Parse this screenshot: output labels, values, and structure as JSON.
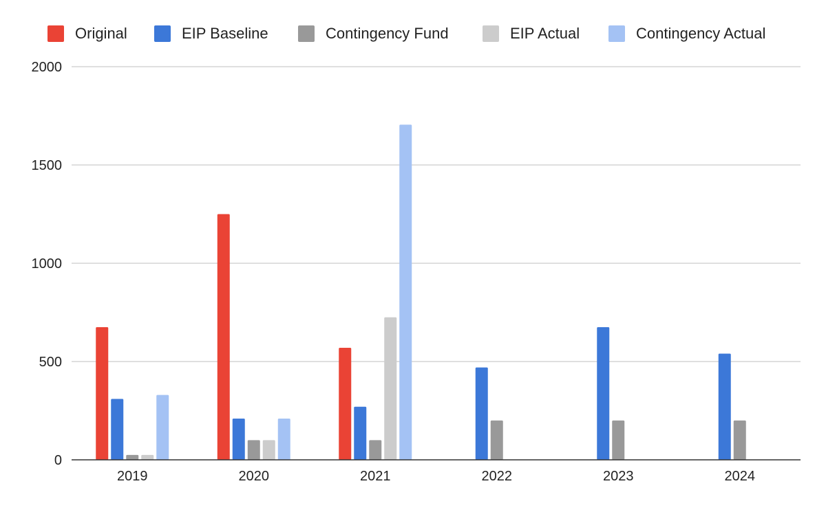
{
  "chart_data": {
    "type": "bar",
    "title": "",
    "xlabel": "",
    "ylabel": "",
    "ylim": [
      0,
      2000
    ],
    "yticks": [
      0,
      500,
      1000,
      1500,
      2000
    ],
    "grid": true,
    "legend_position": "top",
    "categories": [
      "2019",
      "2020",
      "2021",
      "2022",
      "2023",
      "2024"
    ],
    "series": [
      {
        "name": "Original",
        "color": "#EA4335",
        "values": [
          675,
          1250,
          570,
          null,
          null,
          null
        ]
      },
      {
        "name": "EIP Baseline",
        "color": "#3C78D8",
        "values": [
          310,
          210,
          270,
          470,
          675,
          540
        ]
      },
      {
        "name": "Contingency Fund",
        "color": "#999999",
        "values": [
          25,
          100,
          100,
          200,
          200,
          200
        ]
      },
      {
        "name": "EIP Actual",
        "color": "#CCCCCC",
        "values": [
          25,
          100,
          725,
          null,
          null,
          null
        ]
      },
      {
        "name": "Contingency Actual",
        "color": "#A4C2F4",
        "values": [
          330,
          210,
          1705,
          null,
          null,
          null
        ]
      }
    ]
  }
}
